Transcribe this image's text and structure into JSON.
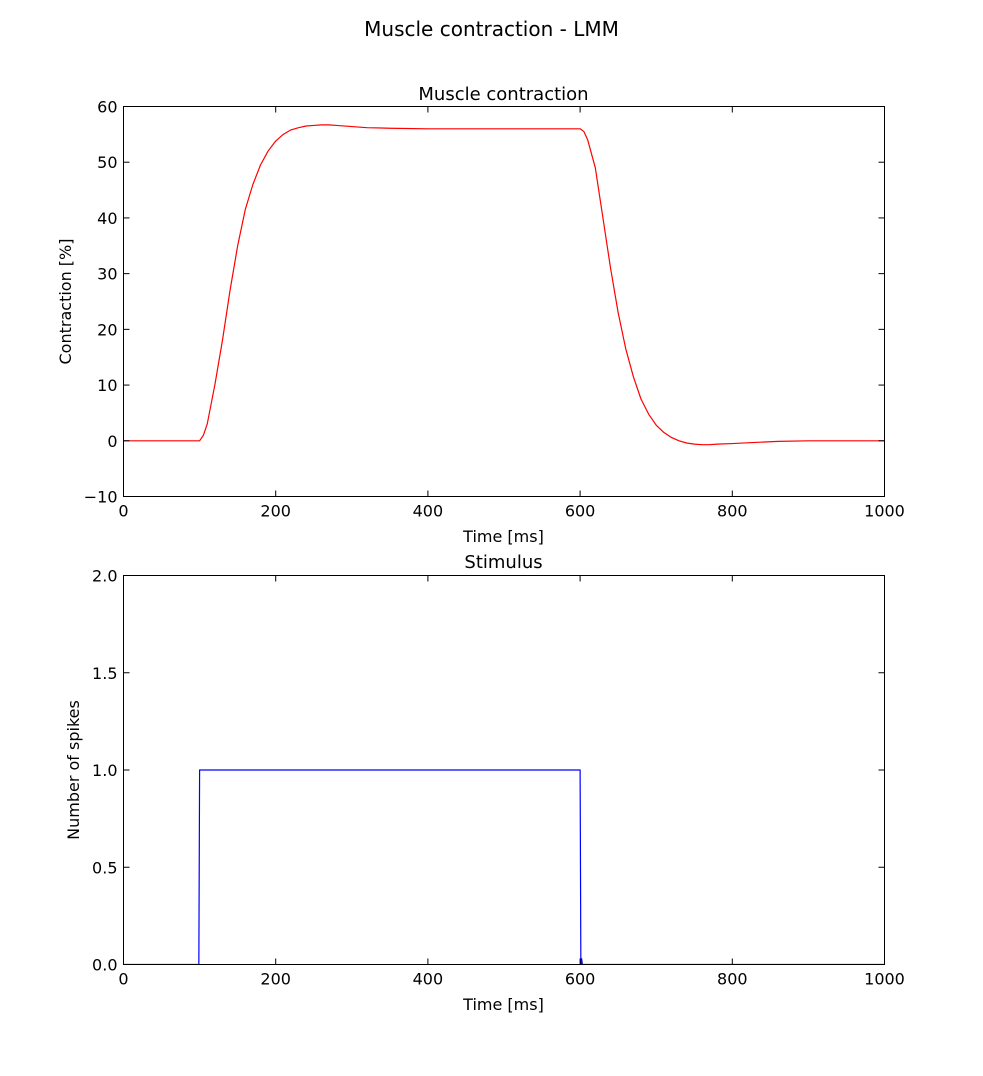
{
  "figure": {
    "suptitle": "Muscle contraction - LMM"
  },
  "chart_data": [
    {
      "type": "line",
      "title": "Muscle contraction",
      "xlabel": "Time [ms]",
      "ylabel": "Contraction [%]",
      "xlim": [
        0,
        1000
      ],
      "ylim": [
        -10,
        60
      ],
      "xticks": [
        0,
        200,
        400,
        600,
        800,
        1000
      ],
      "yticks": [
        -10,
        0,
        10,
        20,
        30,
        40,
        50,
        60
      ],
      "xtick_labels": [
        "0",
        "200",
        "400",
        "600",
        "800",
        "1000"
      ],
      "ytick_labels": [
        "−10",
        "0",
        "10",
        "20",
        "30",
        "40",
        "50",
        "60"
      ],
      "grid": false,
      "series": [
        {
          "color": "#ff0000",
          "x": [
            0,
            100,
            105,
            110,
            120,
            130,
            140,
            150,
            160,
            170,
            180,
            190,
            200,
            210,
            220,
            230,
            240,
            250,
            260,
            270,
            280,
            300,
            320,
            350,
            400,
            450,
            500,
            550,
            590,
            600,
            605,
            610,
            620,
            630,
            640,
            650,
            660,
            670,
            680,
            690,
            700,
            710,
            720,
            730,
            740,
            750,
            760,
            770,
            780,
            800,
            830,
            860,
            900,
            950,
            1000
          ],
          "y": [
            0,
            0,
            1,
            3,
            10,
            18,
            27,
            35,
            41.5,
            46,
            49.5,
            52,
            53.8,
            55,
            55.8,
            56.2,
            56.5,
            56.6,
            56.7,
            56.7,
            56.6,
            56.4,
            56.2,
            56.1,
            56.0,
            56.0,
            56.0,
            56.0,
            56.0,
            56.0,
            55.5,
            54,
            49,
            40,
            31,
            23,
            16.5,
            11.5,
            7.5,
            4.8,
            2.8,
            1.5,
            0.6,
            0,
            -0.4,
            -0.6,
            -0.7,
            -0.7,
            -0.6,
            -0.5,
            -0.3,
            -0.1,
            0,
            0,
            0
          ]
        }
      ]
    },
    {
      "type": "line",
      "title": "Stimulus",
      "xlabel": "Time [ms]",
      "ylabel": "Number of spikes",
      "xlim": [
        0,
        1000
      ],
      "ylim": [
        0,
        2
      ],
      "xticks": [
        0,
        200,
        400,
        600,
        800,
        1000
      ],
      "yticks": [
        0,
        0.5,
        1,
        1.5,
        2
      ],
      "xtick_labels": [
        "0",
        "200",
        "400",
        "600",
        "800",
        "1000"
      ],
      "ytick_labels": [
        "0.0",
        "0.5",
        "1.0",
        "1.5",
        "2.0"
      ],
      "grid": false,
      "series": [
        {
          "color": "#0000ff",
          "x": [
            0,
            99,
            100,
            600,
            601,
            602,
            603,
            1000
          ],
          "y": [
            0,
            0,
            1,
            1,
            0,
            0.03,
            0,
            0
          ]
        }
      ]
    }
  ]
}
